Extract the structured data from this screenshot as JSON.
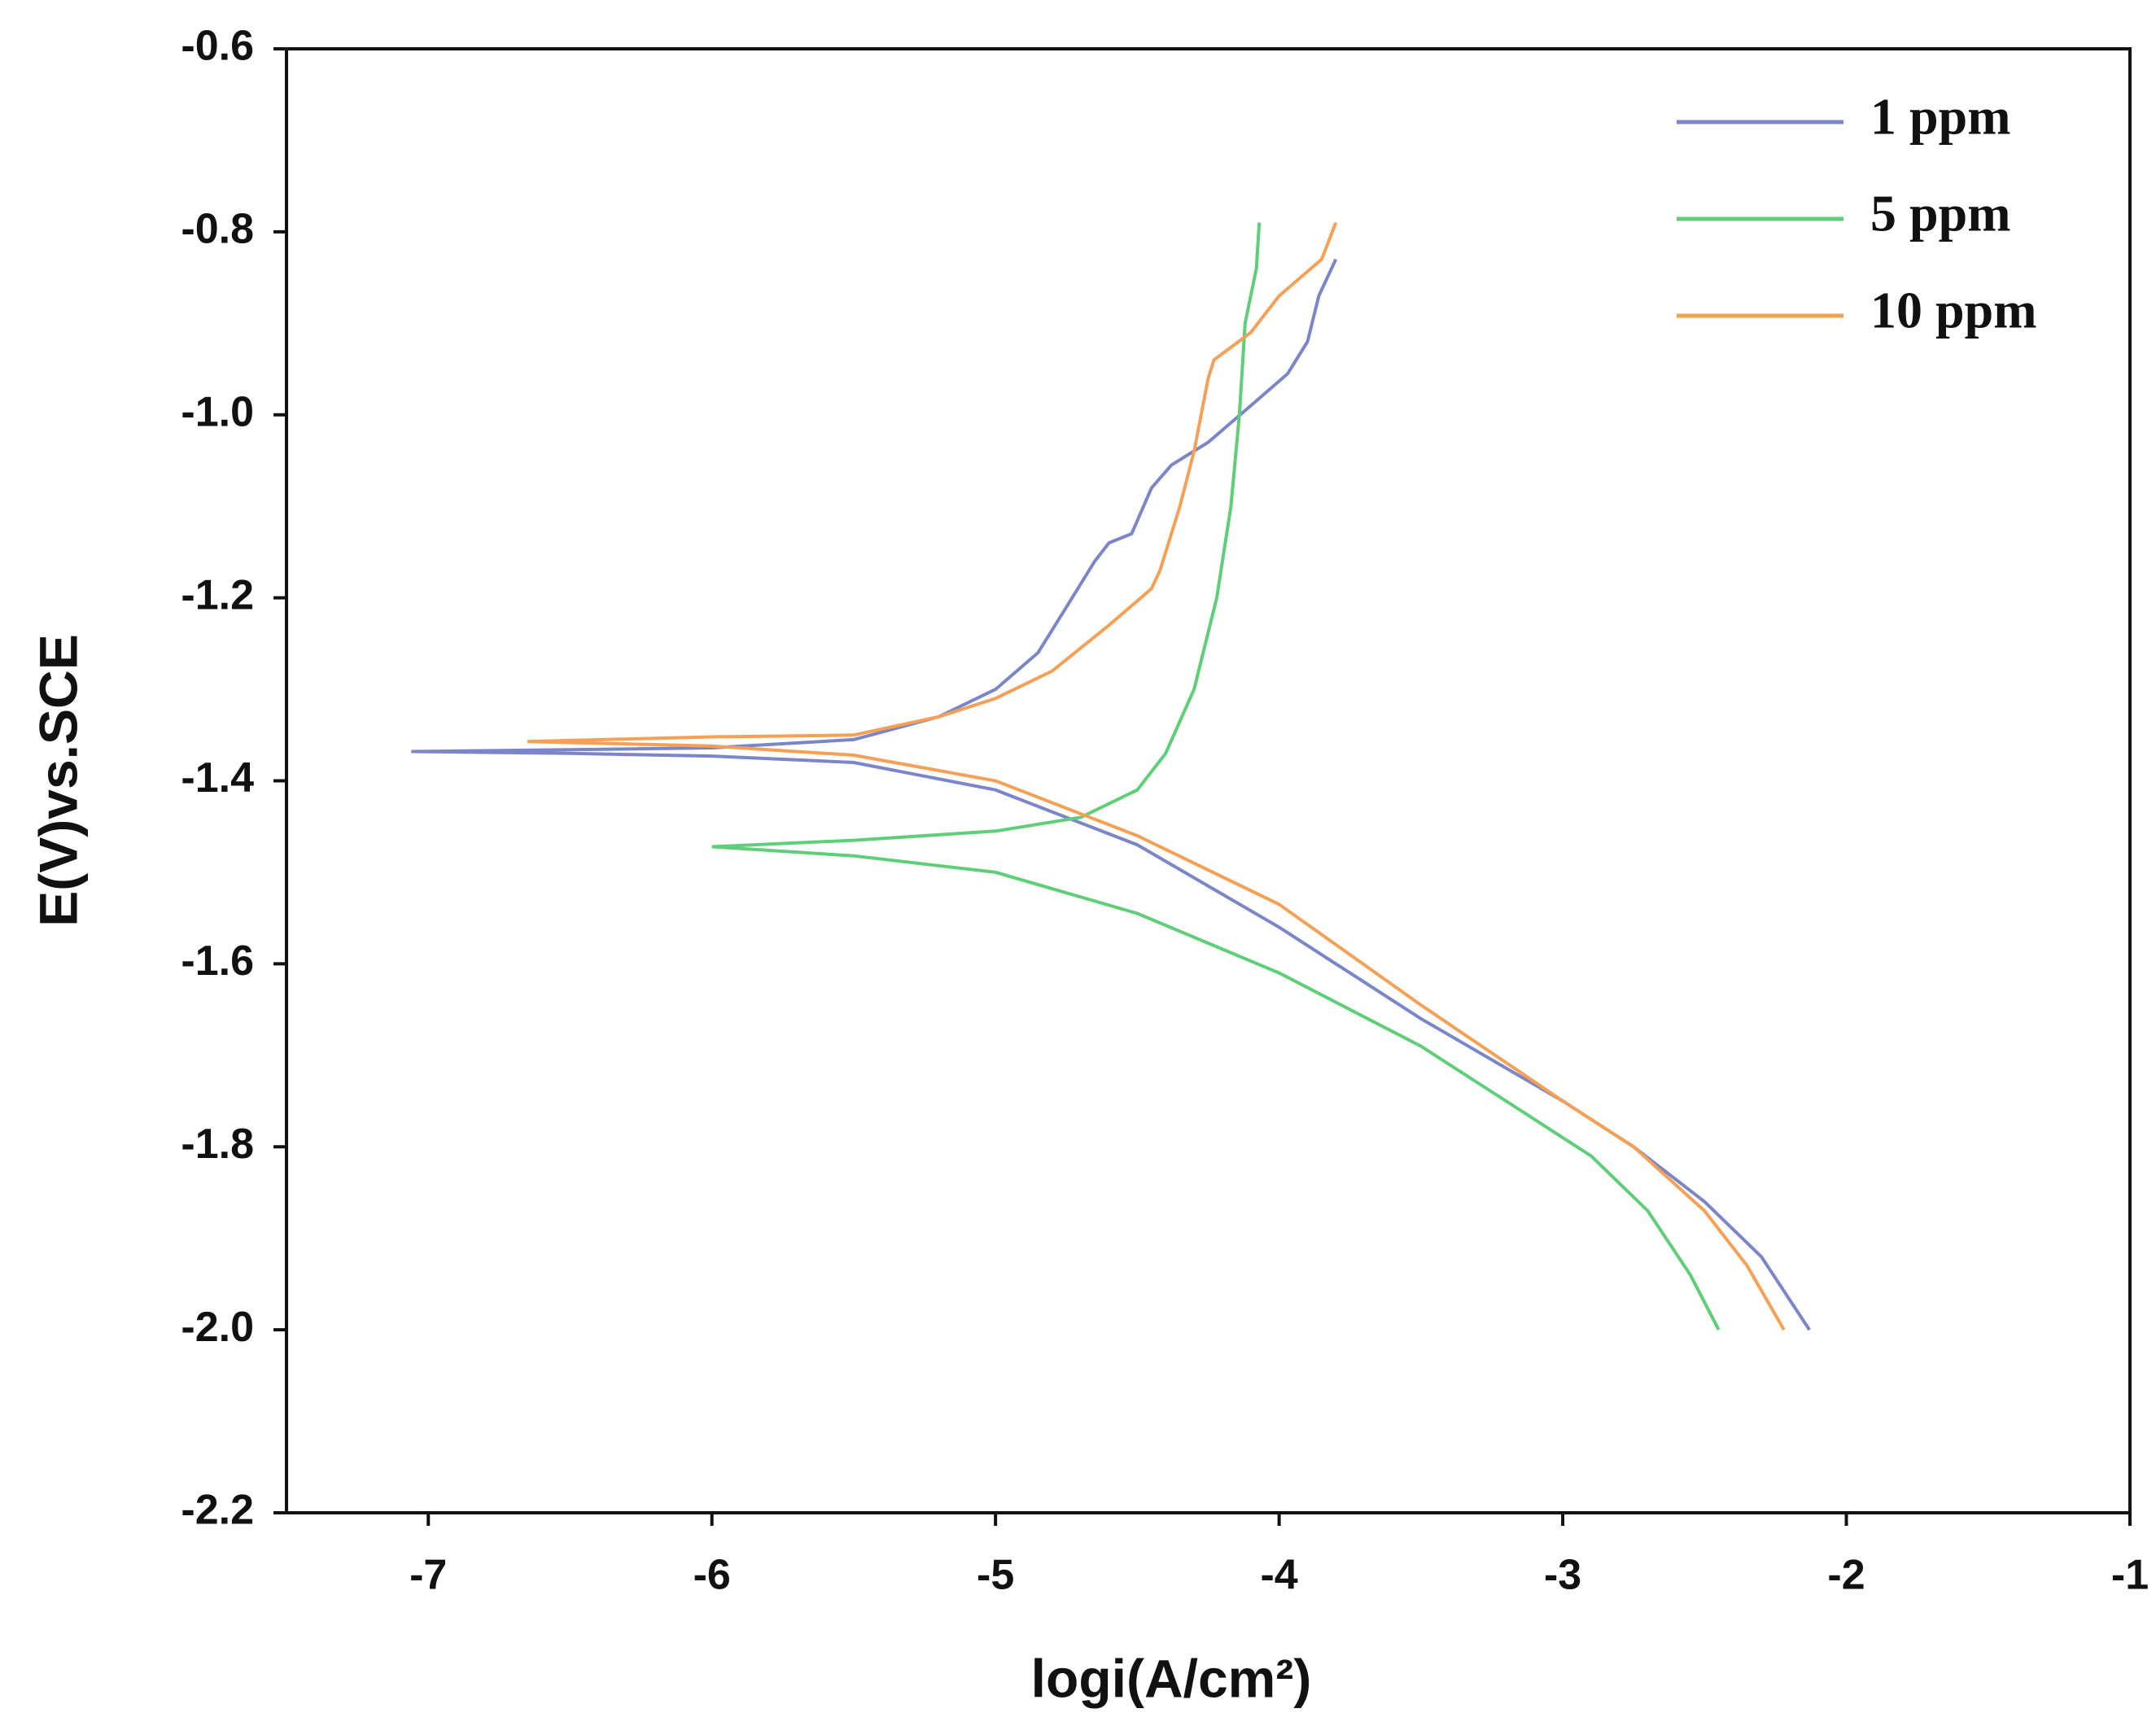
{
  "chart_data": {
    "type": "line",
    "xlabel": "logi(A/cm²)",
    "ylabel": "E(V)vs.SCE",
    "xlim": [
      -7.5,
      -1
    ],
    "xticks": [
      -7,
      -6,
      -5,
      -4,
      -3,
      -2,
      -1
    ],
    "ylim": [
      -2.2,
      -0.6
    ],
    "yticks": [
      -2.2,
      {
        "value": -2,
        "label": "-2.0"
      },
      -1.8,
      -1.6,
      -1.4,
      -1.2,
      {
        "value": -1,
        "label": "-1.0"
      },
      -0.8,
      -0.6
    ],
    "legend": "upper right",
    "series": [
      {
        "name": "1 ppm",
        "color": "#7a86c8",
        "x": [
          -2.13,
          -2.3,
          -2.5,
          -2.75,
          -3.0,
          -3.5,
          -3.8,
          -4.0,
          -4.5,
          -5.0,
          -5.5,
          -6.0,
          -6.5,
          -7.06,
          -6.5,
          -6.0,
          -5.5,
          -5.2,
          -5.0,
          -4.85,
          -4.75,
          -4.65,
          -4.6,
          -4.52,
          -4.45,
          -4.38,
          -4.25,
          -4.1,
          -3.97,
          -3.9,
          -3.86,
          -3.8
        ],
        "values": [
          -2.0,
          -1.92,
          -1.86,
          -1.8,
          -1.75,
          -1.66,
          -1.6,
          -1.56,
          -1.47,
          -1.41,
          -1.38,
          -1.373,
          -1.37,
          -1.368,
          -1.366,
          -1.364,
          -1.355,
          -1.33,
          -1.3,
          -1.26,
          -1.21,
          -1.16,
          -1.14,
          -1.13,
          -1.08,
          -1.055,
          -1.03,
          -0.99,
          -0.955,
          -0.92,
          -0.87,
          -0.83
        ]
      },
      {
        "name": "5 ppm",
        "color": "#5ecf78",
        "x": [
          -2.45,
          -2.55,
          -2.7,
          -2.9,
          -3.2,
          -3.5,
          -4.0,
          -4.5,
          -5.0,
          -5.5,
          -6.0,
          -5.5,
          -5.0,
          -4.7,
          -4.5,
          -4.4,
          -4.3,
          -4.22,
          -4.17,
          -4.14,
          -4.12,
          -4.08,
          -4.07
        ],
        "values": [
          -2.0,
          -1.94,
          -1.87,
          -1.81,
          -1.75,
          -1.69,
          -1.61,
          -1.545,
          -1.5,
          -1.482,
          -1.472,
          -1.465,
          -1.455,
          -1.44,
          -1.41,
          -1.37,
          -1.3,
          -1.2,
          -1.1,
          -1.0,
          -0.9,
          -0.84,
          -0.79
        ]
      },
      {
        "name": "10 ppm",
        "color": "#f5a055",
        "x": [
          -2.22,
          -2.35,
          -2.5,
          -2.75,
          -3.0,
          -3.5,
          -4.0,
          -4.5,
          -5.0,
          -5.5,
          -6.0,
          -6.65,
          -6.0,
          -5.5,
          -5.2,
          -5.0,
          -4.8,
          -4.6,
          -4.45,
          -4.42,
          -4.35,
          -4.3,
          -4.25,
          -4.23,
          -4.1,
          -4.0,
          -3.85,
          -3.8
        ],
        "values": [
          -2.0,
          -1.93,
          -1.87,
          -1.8,
          -1.75,
          -1.645,
          -1.535,
          -1.46,
          -1.4,
          -1.372,
          -1.362,
          -1.357,
          -1.352,
          -1.35,
          -1.33,
          -1.31,
          -1.28,
          -1.23,
          -1.19,
          -1.17,
          -1.1,
          -1.04,
          -0.96,
          -0.94,
          -0.91,
          -0.87,
          -0.83,
          -0.79
        ]
      }
    ]
  }
}
